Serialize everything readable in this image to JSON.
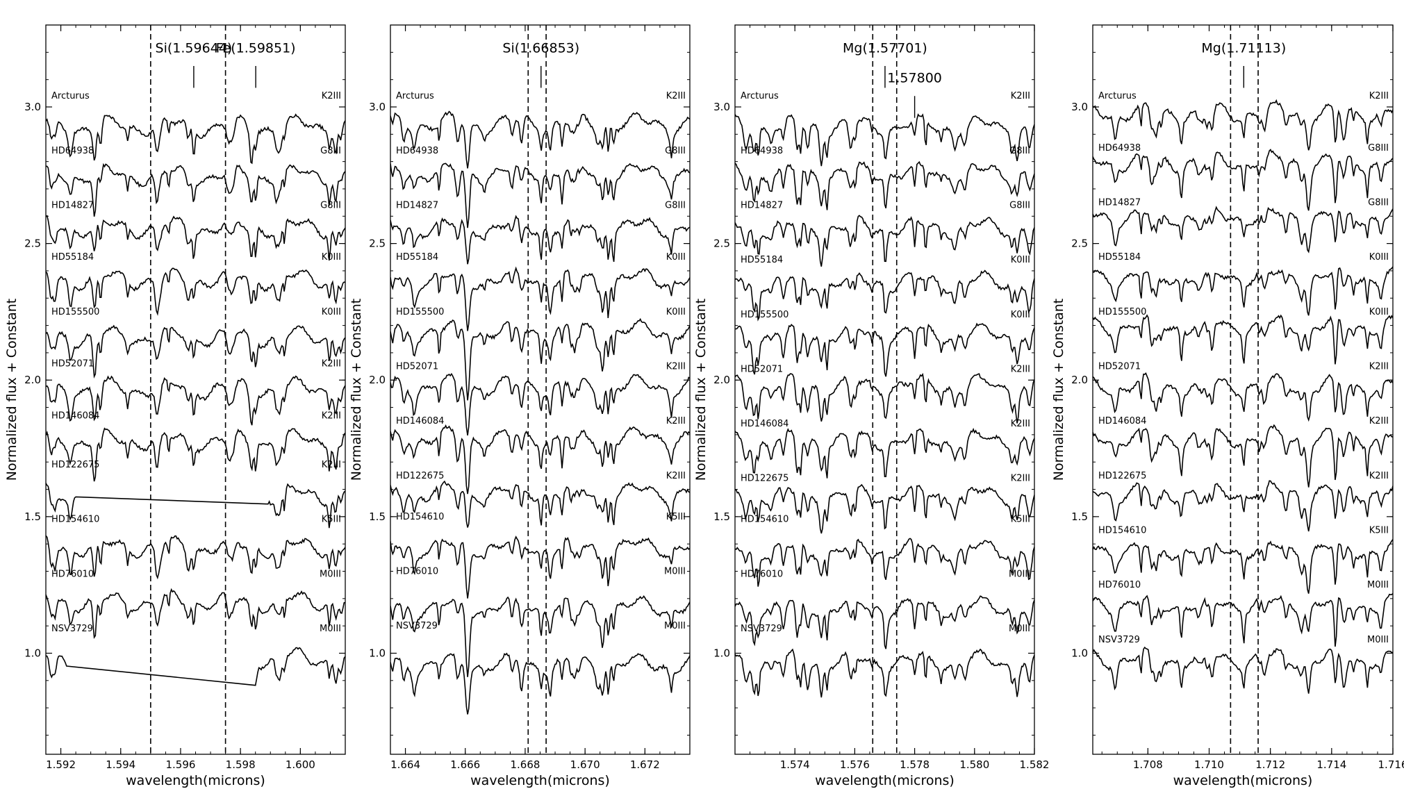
{
  "chart_data": [
    {
      "type": "line",
      "xlabel": "wavelength(microns)",
      "ylabel": "Normalized flux + Constant",
      "xlim": [
        1.5915,
        1.6015
      ],
      "ylim": [
        0.63,
        3.3
      ],
      "xticks": [
        1.592,
        1.594,
        1.596,
        1.598,
        1.6
      ],
      "xtick_labels": [
        "1.592",
        "1.594",
        "1.596",
        "1.598",
        "1.600"
      ],
      "yticks": [
        1.0,
        1.5,
        2.0,
        2.5,
        3.0
      ],
      "ytick_labels": [
        "1.0",
        "1.5",
        "2.0",
        "2.5",
        "3.0"
      ],
      "dashed_lines": [
        1.595,
        1.5975
      ],
      "line_labels": [
        {
          "text": "Si(1.59644)",
          "x": 1.59644,
          "ylabel": 3.2,
          "ybar_top": 3.15,
          "ybar_bottom": 3.07
        },
        {
          "text": "Fe(1.59851)",
          "x": 1.59851,
          "ylabel": 3.2,
          "ybar_top": 3.15,
          "ybar_bottom": 3.07
        }
      ],
      "gaps": [
        {
          "star": "HD122675",
          "x1": 1.5925,
          "x2": 1.5989
        },
        {
          "star": "NSV3729",
          "x1": 1.5922,
          "x2": 1.5985
        }
      ],
      "series": [
        {
          "name": "Arcturus",
          "spectral_type": "K2III",
          "offset": 2.93,
          "label_y": 3.03
        },
        {
          "name": "HD64938",
          "spectral_type": "G8III",
          "offset": 2.75,
          "label_y": 2.83
        },
        {
          "name": "HD14827",
          "spectral_type": "G8III",
          "offset": 2.56,
          "label_y": 2.63
        },
        {
          "name": "HD55184",
          "spectral_type": "K0III",
          "offset": 2.37,
          "label_y": 2.44
        },
        {
          "name": "HD155500",
          "spectral_type": "K0III",
          "offset": 2.16,
          "label_y": 2.24
        },
        {
          "name": "HD52071",
          "spectral_type": "K2III",
          "offset": 1.97,
          "label_y": 2.05
        },
        {
          "name": "HD146084",
          "spectral_type": "K2III",
          "offset": 1.78,
          "label_y": 1.86
        },
        {
          "name": "HD122675",
          "spectral_type": "K2III",
          "offset": 1.58,
          "label_y": 1.68
        },
        {
          "name": "HD154610",
          "spectral_type": "K5III",
          "offset": 1.39,
          "label_y": 1.48
        },
        {
          "name": "HD76010",
          "spectral_type": "M0III",
          "offset": 1.19,
          "label_y": 1.28
        },
        {
          "name": "NSV3729",
          "spectral_type": "M0III",
          "offset": 0.98,
          "label_y": 1.08
        }
      ]
    },
    {
      "type": "line",
      "xlabel": "wavelength(microns)",
      "ylabel": "Normalized flux + Constant",
      "xlim": [
        1.6635,
        1.6735
      ],
      "ylim": [
        0.63,
        3.3
      ],
      "xticks": [
        1.664,
        1.666,
        1.668,
        1.67,
        1.672
      ],
      "xtick_labels": [
        "1.664",
        "1.666",
        "1.668",
        "1.670",
        "1.672"
      ],
      "yticks": [
        1.0,
        1.5,
        2.0,
        2.5,
        3.0
      ],
      "ytick_labels": [
        "1.0",
        "1.5",
        "2.0",
        "2.5",
        "3.0"
      ],
      "dashed_lines": [
        1.6681,
        1.6687
      ],
      "line_labels": [
        {
          "text": "Si(1.66853)",
          "x": 1.66853,
          "ylabel": 3.2,
          "ybar_top": 3.15,
          "ybar_bottom": 3.07
        }
      ],
      "gaps": [],
      "series": [
        {
          "name": "Arcturus",
          "spectral_type": "K2III",
          "offset": 2.94,
          "label_y": 3.03
        },
        {
          "name": "HD64938",
          "spectral_type": "G8III",
          "offset": 2.76,
          "label_y": 2.83
        },
        {
          "name": "HD14827",
          "spectral_type": "G8III",
          "offset": 2.56,
          "label_y": 2.63
        },
        {
          "name": "HD55184",
          "spectral_type": "K0III",
          "offset": 2.37,
          "label_y": 2.44
        },
        {
          "name": "HD155500",
          "spectral_type": "K0III",
          "offset": 2.18,
          "label_y": 2.24
        },
        {
          "name": "HD52071",
          "spectral_type": "K2III",
          "offset": 1.98,
          "label_y": 2.04
        },
        {
          "name": "HD146084",
          "spectral_type": "K2III",
          "offset": 1.79,
          "label_y": 1.84
        },
        {
          "name": "HD122675",
          "spectral_type": "K2III",
          "offset": 1.59,
          "label_y": 1.64
        },
        {
          "name": "HD154610",
          "spectral_type": "K5III",
          "offset": 1.39,
          "label_y": 1.49
        },
        {
          "name": "HD76010",
          "spectral_type": "M0III",
          "offset": 1.17,
          "label_y": 1.29
        },
        {
          "name": "NSV3729",
          "spectral_type": "M0III",
          "offset": 0.96,
          "label_y": 1.09
        }
      ]
    },
    {
      "type": "line",
      "xlabel": "wavelength(microns)",
      "ylabel": "Normalized flux + Constant",
      "xlim": [
        1.572,
        1.582
      ],
      "ylim": [
        0.63,
        3.3
      ],
      "xticks": [
        1.574,
        1.576,
        1.578,
        1.58,
        1.582
      ],
      "xtick_labels": [
        "1.574",
        "1.576",
        "1.578",
        "1.580",
        "1.582"
      ],
      "yticks": [
        1.0,
        1.5,
        2.0,
        2.5,
        3.0
      ],
      "ytick_labels": [
        "1.0",
        "1.5",
        "2.0",
        "2.5",
        "3.0"
      ],
      "dashed_lines": [
        1.5766,
        1.5774
      ],
      "line_labels": [
        {
          "text": "Mg(1.57701)",
          "x": 1.57701,
          "ylabel": 3.2,
          "ybar_top": 3.15,
          "ybar_bottom": 3.07
        },
        {
          "text": "1.57800",
          "x": 1.578,
          "ylabel": 3.09,
          "ybar_top": 3.04,
          "ybar_bottom": 2.96
        }
      ],
      "gaps": [],
      "series": [
        {
          "name": "Arcturus",
          "spectral_type": "K2III",
          "offset": 2.93,
          "label_y": 3.03
        },
        {
          "name": "HD64938",
          "spectral_type": "G8III",
          "offset": 2.76,
          "label_y": 2.83
        },
        {
          "name": "HD14827",
          "spectral_type": "G8III",
          "offset": 2.56,
          "label_y": 2.63
        },
        {
          "name": "HD55184",
          "spectral_type": "K0III",
          "offset": 2.36,
          "label_y": 2.43
        },
        {
          "name": "HD155500",
          "spectral_type": "K0III",
          "offset": 2.17,
          "label_y": 2.23
        },
        {
          "name": "HD52071",
          "spectral_type": "K2III",
          "offset": 1.98,
          "label_y": 2.03
        },
        {
          "name": "HD146084",
          "spectral_type": "K2III",
          "offset": 1.78,
          "label_y": 1.83
        },
        {
          "name": "HD122675",
          "spectral_type": "K2III",
          "offset": 1.58,
          "label_y": 1.63
        },
        {
          "name": "HD154610",
          "spectral_type": "K5III",
          "offset": 1.38,
          "label_y": 1.48
        },
        {
          "name": "HD76010",
          "spectral_type": "M0III",
          "offset": 1.17,
          "label_y": 1.28
        },
        {
          "name": "NSV3729",
          "spectral_type": "M0III",
          "offset": 0.97,
          "label_y": 1.08
        }
      ]
    },
    {
      "type": "line",
      "xlabel": "wavelength(microns)",
      "ylabel": "Normalized flux + Constant",
      "xlim": [
        1.7062,
        1.716
      ],
      "ylim": [
        0.63,
        3.3
      ],
      "xticks": [
        1.708,
        1.71,
        1.712,
        1.714,
        1.716
      ],
      "xtick_labels": [
        "1.708",
        "1.710",
        "1.712",
        "1.714",
        "1.716"
      ],
      "yticks": [
        1.0,
        1.5,
        2.0,
        2.5,
        3.0
      ],
      "ytick_labels": [
        "1.0",
        "1.5",
        "2.0",
        "2.5",
        "3.0"
      ],
      "dashed_lines": [
        1.7107,
        1.7116
      ],
      "line_labels": [
        {
          "text": "Mg(1.71113)",
          "x": 1.71113,
          "ylabel": 3.2,
          "ybar_top": 3.15,
          "ybar_bottom": 3.07
        }
      ],
      "gaps": [],
      "series": [
        {
          "name": "Arcturus",
          "spectral_type": "K2III",
          "offset": 2.98,
          "label_y": 3.03
        },
        {
          "name": "HD64938",
          "spectral_type": "G8III",
          "offset": 2.8,
          "label_y": 2.84
        },
        {
          "name": "HD14827",
          "spectral_type": "G8III",
          "offset": 2.6,
          "label_y": 2.64
        },
        {
          "name": "HD55184",
          "spectral_type": "K0III",
          "offset": 2.38,
          "label_y": 2.44
        },
        {
          "name": "HD155500",
          "spectral_type": "K0III",
          "offset": 2.2,
          "label_y": 2.24
        },
        {
          "name": "HD52071",
          "spectral_type": "K2III",
          "offset": 1.98,
          "label_y": 2.04
        },
        {
          "name": "HD146084",
          "spectral_type": "K2III",
          "offset": 1.79,
          "label_y": 1.84
        },
        {
          "name": "HD122675",
          "spectral_type": "K2III",
          "offset": 1.59,
          "label_y": 1.64
        },
        {
          "name": "HD154610",
          "spectral_type": "K5III",
          "offset": 1.38,
          "label_y": 1.44
        },
        {
          "name": "HD76010",
          "spectral_type": "M0III",
          "offset": 1.18,
          "label_y": 1.24
        },
        {
          "name": "NSV3729",
          "spectral_type": "M0III",
          "offset": 0.98,
          "label_y": 1.04
        }
      ]
    }
  ]
}
